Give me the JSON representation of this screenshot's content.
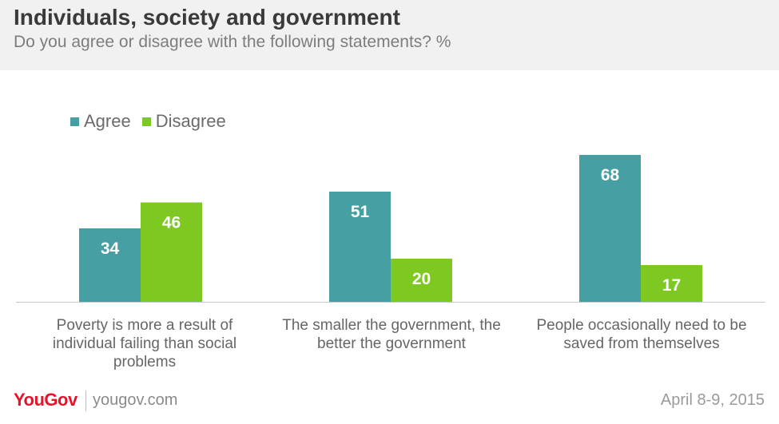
{
  "header": {
    "title": "Individuals, society and government",
    "subtitle": "Do you agree or disagree with the following statements? %"
  },
  "chart_data": {
    "type": "bar",
    "categories": [
      "Poverty is more a result of individual failing than social problems",
      "The smaller the government, the better the government",
      "People occasionally need to be saved from themselves"
    ],
    "series": [
      {
        "name": "Agree",
        "values": [
          34,
          51,
          68
        ],
        "color": "#46a0a3"
      },
      {
        "name": "Disagree",
        "values": [
          46,
          20,
          17
        ],
        "color": "#7ec921"
      }
    ],
    "legend": "top-left",
    "grid": false,
    "ylim": [
      0,
      68
    ]
  },
  "footer": {
    "brand": "YouGov",
    "url": "yougov.com",
    "date": "April 8-9, 2015"
  }
}
